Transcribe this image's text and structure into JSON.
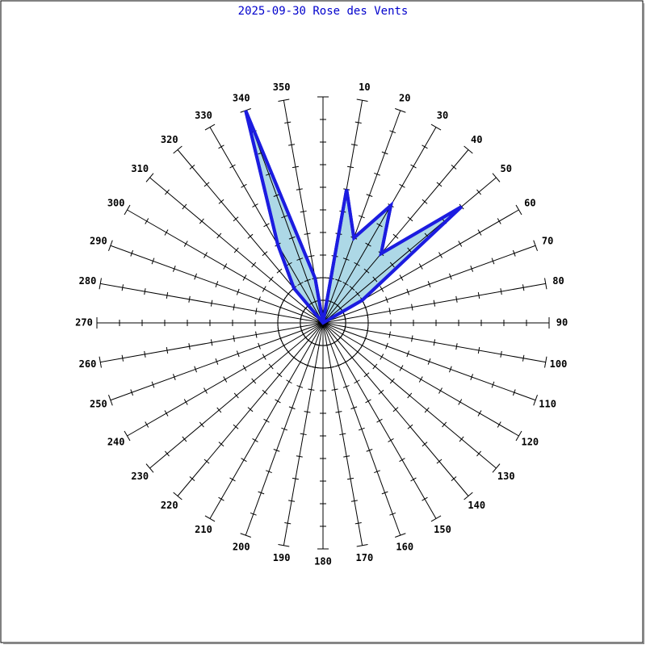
{
  "chart_data": {
    "type": "radar",
    "title": "2025-09-30 Rose des Vents",
    "categories": [
      null,
      10,
      20,
      30,
      40,
      50,
      60,
      70,
      80,
      90,
      100,
      110,
      120,
      130,
      140,
      150,
      160,
      170,
      180,
      190,
      200,
      210,
      220,
      230,
      240,
      250,
      260,
      270,
      280,
      290,
      300,
      310,
      320,
      330,
      340,
      350
    ],
    "values": [
      0,
      6,
      4,
      6,
      4,
      8,
      2,
      0,
      0,
      0,
      0,
      0,
      0,
      0,
      0,
      0,
      0,
      0,
      0,
      0,
      0,
      0,
      0,
      0,
      0,
      0,
      0,
      0,
      0,
      0,
      0,
      0,
      2,
      4,
      10,
      2
    ],
    "rlim": [
      0,
      10
    ],
    "rticks": [
      1,
      2,
      3,
      4,
      5,
      6,
      7,
      8,
      9,
      10
    ],
    "fill": "#add8e6",
    "color": "#1c1ce0",
    "title_color": "#0000cc"
  }
}
